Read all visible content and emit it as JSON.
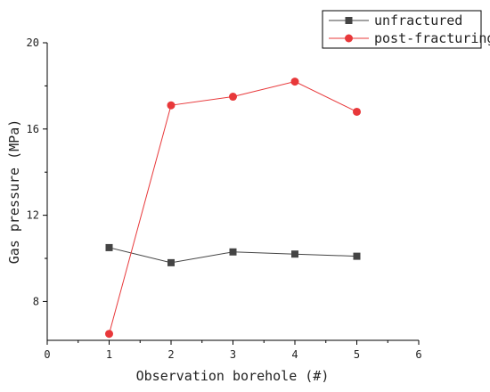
{
  "chart_data": {
    "type": "line",
    "title": "",
    "xlabel": "Observation borehole (#)",
    "ylabel": "Gas pressure (MPa)",
    "xlim": [
      0,
      6
    ],
    "ylim": [
      6.2,
      20
    ],
    "xticks": [
      "0",
      "1",
      "2",
      "3",
      "4",
      "5",
      "6"
    ],
    "yticks": [
      "8",
      "12",
      "16",
      "20"
    ],
    "grid": false,
    "legend_position": "top-right",
    "series": [
      {
        "name": "unfractured",
        "marker": "square",
        "color": "#444444",
        "x": [
          1,
          2,
          3,
          4,
          5
        ],
        "y": [
          10.5,
          9.8,
          10.3,
          10.2,
          10.1
        ]
      },
      {
        "name": "post-fracturing",
        "marker": "circle",
        "color": "#e8383a",
        "x": [
          1,
          2,
          3,
          4,
          5
        ],
        "y": [
          6.5,
          17.1,
          17.5,
          18.2,
          16.8
        ]
      }
    ]
  }
}
